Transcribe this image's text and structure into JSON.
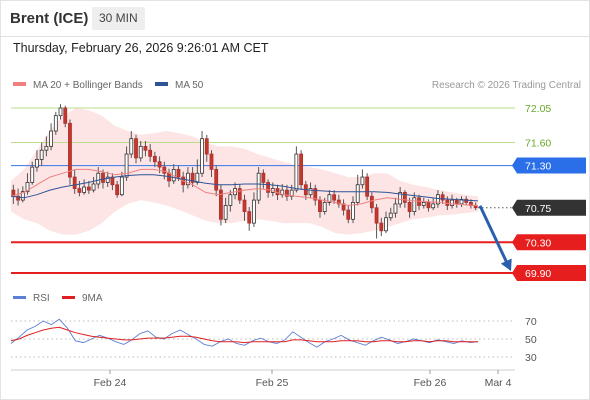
{
  "header": {
    "instrument": "Brent (ICE)",
    "timeframe": "30 MIN"
  },
  "datetime": "Thursday, February 26, 2026 9:26:01 AM CET",
  "legend": {
    "ma20_label": "MA 20 + Bollinger Bands",
    "ma50_label": "MA 50",
    "ma20_color": "#f08080",
    "ma50_color": "#2f5496"
  },
  "credit": "Research © 2026 Trading Central",
  "rsi_legend": {
    "rsi_label": "RSI",
    "ma9_label": "9MA",
    "rsi_color": "#5b7fd6",
    "ma9_color": "#e02020"
  },
  "chart_data": [
    {
      "type": "candlestick",
      "x_labels": [
        "Feb 24",
        "Feb 25",
        "Feb 26",
        "Mar 4"
      ],
      "ylim": [
        69.72,
        72.15
      ],
      "levels": [
        {
          "value": 72.05,
          "label": "72.05",
          "style": "resistance-thin",
          "color": "#8dc63f"
        },
        {
          "value": 71.6,
          "label": "71.60",
          "style": "resistance-thin",
          "color": "#8dc63f"
        },
        {
          "value": 71.3,
          "label": "71.30",
          "style": "resistance-main",
          "color": "#2a6ee8"
        },
        {
          "value": 70.75,
          "label": "70.75",
          "style": "last-price",
          "color": "#333333"
        },
        {
          "value": 70.3,
          "label": "70.30",
          "style": "support-main",
          "color": "#e61e1e"
        },
        {
          "value": 69.9,
          "label": "69.90",
          "style": "support-main",
          "color": "#e61e1e"
        }
      ],
      "last_price": 70.75,
      "projection": {
        "from": 70.75,
        "to": 69.9
      },
      "candles": [
        [
          70.98,
          70.9,
          71.05,
          70.8
        ],
        [
          70.9,
          70.85,
          71.0,
          70.78
        ],
        [
          70.85,
          70.96,
          71.03,
          70.82
        ],
        [
          70.96,
          71.08,
          71.2,
          70.92
        ],
        [
          71.08,
          71.28,
          71.35,
          71.05
        ],
        [
          71.28,
          71.38,
          71.5,
          71.22
        ],
        [
          71.38,
          71.5,
          71.6,
          71.3
        ],
        [
          71.5,
          71.55,
          71.68,
          71.42
        ],
        [
          71.55,
          71.75,
          71.85,
          71.5
        ],
        [
          71.75,
          71.95,
          72.0,
          71.7
        ],
        [
          71.95,
          72.05,
          72.1,
          71.9
        ],
        [
          72.05,
          71.85,
          72.08,
          71.8
        ],
        [
          71.85,
          71.15,
          71.9,
          71.05
        ],
        [
          71.15,
          71.0,
          71.25,
          70.93
        ],
        [
          71.0,
          70.95,
          71.1,
          70.9
        ],
        [
          70.95,
          71.02,
          71.12,
          70.92
        ],
        [
          71.02,
          70.98,
          71.1,
          70.93
        ],
        [
          70.98,
          71.06,
          71.15,
          70.95
        ],
        [
          71.06,
          71.2,
          71.28,
          71.0
        ],
        [
          71.2,
          71.08,
          71.25,
          71.0
        ],
        [
          71.08,
          71.15,
          71.22,
          71.02
        ],
        [
          71.15,
          71.05,
          71.2,
          70.98
        ],
        [
          71.05,
          70.92,
          71.1,
          70.88
        ],
        [
          70.92,
          71.15,
          71.22,
          70.9
        ],
        [
          71.15,
          71.45,
          71.55,
          71.1
        ],
        [
          71.45,
          71.65,
          71.75,
          71.4
        ],
        [
          71.65,
          71.4,
          71.7,
          71.33
        ],
        [
          71.4,
          71.55,
          71.62,
          71.35
        ],
        [
          71.55,
          71.5,
          71.62,
          71.42
        ],
        [
          71.5,
          71.42,
          71.58,
          71.35
        ],
        [
          71.42,
          71.35,
          71.48,
          71.28
        ],
        [
          71.35,
          71.28,
          71.42,
          71.2
        ],
        [
          71.28,
          71.2,
          71.35,
          71.12
        ],
        [
          71.2,
          71.1,
          71.26,
          71.02
        ],
        [
          71.1,
          71.25,
          71.32,
          71.06
        ],
        [
          71.25,
          71.15,
          71.3,
          71.1
        ],
        [
          71.15,
          71.05,
          71.22,
          70.95
        ],
        [
          71.05,
          71.2,
          71.28,
          71.0
        ],
        [
          71.2,
          71.08,
          71.28,
          71.02
        ],
        [
          71.08,
          71.2,
          71.38,
          71.05
        ],
        [
          71.2,
          71.65,
          71.75,
          71.15
        ],
        [
          71.65,
          71.45,
          71.7,
          71.35
        ],
        [
          71.45,
          71.25,
          71.5,
          71.15
        ],
        [
          71.25,
          70.98,
          71.3,
          70.9
        ],
        [
          70.98,
          70.6,
          71.05,
          70.52
        ],
        [
          70.6,
          70.78,
          70.88,
          70.55
        ],
        [
          70.78,
          70.92,
          70.98,
          70.7
        ],
        [
          70.92,
          71.0,
          71.08,
          70.86
        ],
        [
          71.0,
          70.85,
          71.05,
          70.8
        ],
        [
          70.85,
          70.7,
          70.92,
          70.58
        ],
        [
          70.7,
          70.55,
          70.76,
          70.45
        ],
        [
          70.55,
          70.85,
          70.95,
          70.5
        ],
        [
          70.85,
          71.2,
          71.28,
          70.8
        ],
        [
          71.2,
          71.08,
          71.25,
          71.0
        ],
        [
          71.08,
          70.95,
          71.12,
          70.88
        ],
        [
          70.95,
          71.0,
          71.08,
          70.9
        ],
        [
          71.0,
          70.92,
          71.05,
          70.85
        ],
        [
          70.92,
          70.98,
          71.06,
          70.88
        ],
        [
          70.98,
          70.9,
          71.05,
          70.84
        ],
        [
          70.9,
          70.98,
          71.05,
          70.85
        ],
        [
          70.98,
          71.45,
          71.55,
          70.95
        ],
        [
          71.45,
          71.05,
          71.5,
          70.98
        ],
        [
          71.05,
          70.92,
          71.1,
          70.85
        ],
        [
          70.92,
          71.0,
          71.08,
          70.88
        ],
        [
          71.0,
          70.85,
          71.05,
          70.78
        ],
        [
          70.85,
          70.7,
          70.9,
          70.62
        ],
        [
          70.7,
          70.82,
          70.88,
          70.66
        ],
        [
          70.82,
          70.92,
          70.98,
          70.78
        ],
        [
          70.92,
          70.85,
          70.98,
          70.8
        ],
        [
          70.85,
          70.8,
          70.92,
          70.75
        ],
        [
          70.8,
          70.72,
          70.86,
          70.65
        ],
        [
          70.72,
          70.6,
          70.78,
          70.55
        ],
        [
          70.6,
          70.82,
          70.9,
          70.55
        ],
        [
          70.82,
          71.05,
          71.18,
          70.78
        ],
        [
          71.05,
          71.15,
          71.25,
          71.0
        ],
        [
          71.15,
          70.9,
          71.2,
          70.85
        ],
        [
          70.9,
          70.75,
          70.95,
          70.68
        ],
        [
          70.75,
          70.55,
          70.8,
          70.35
        ],
        [
          70.55,
          70.45,
          70.62,
          70.38
        ],
        [
          70.45,
          70.62,
          70.7,
          70.42
        ],
        [
          70.62,
          70.68,
          70.75,
          70.58
        ],
        [
          70.68,
          70.8,
          70.88,
          70.62
        ],
        [
          70.8,
          70.95,
          71.02,
          70.75
        ],
        [
          70.95,
          70.82,
          70.98,
          70.75
        ],
        [
          70.82,
          70.7,
          70.88,
          70.62
        ],
        [
          70.7,
          70.88,
          70.95,
          70.65
        ],
        [
          70.88,
          70.78,
          70.92,
          70.72
        ],
        [
          70.78,
          70.82,
          70.88,
          70.74
        ],
        [
          70.82,
          70.75,
          70.86,
          70.7
        ],
        [
          70.75,
          70.8,
          70.88,
          70.72
        ],
        [
          70.8,
          70.92,
          70.98,
          70.75
        ],
        [
          70.92,
          70.85,
          70.96,
          70.8
        ],
        [
          70.85,
          70.78,
          70.9,
          70.72
        ],
        [
          70.78,
          70.85,
          70.92,
          70.74
        ],
        [
          70.85,
          70.8,
          70.88,
          70.75
        ],
        [
          70.8,
          70.86,
          70.9,
          70.76
        ],
        [
          70.86,
          70.82,
          70.9,
          70.78
        ],
        [
          70.82,
          70.78,
          70.86,
          70.74
        ],
        [
          70.78,
          70.75,
          70.82,
          70.72
        ]
      ],
      "bollinger": {
        "upper": [
          71.1,
          71.25,
          71.5,
          71.75,
          71.95,
          72.05,
          72.02,
          71.95,
          71.82,
          71.75,
          71.7,
          71.72,
          71.75,
          71.72,
          71.68,
          71.6,
          71.55,
          71.55,
          71.52,
          71.45,
          71.4,
          71.35,
          71.3,
          71.28,
          71.25,
          71.2,
          71.15,
          71.15,
          71.2,
          71.2,
          71.1,
          71.05,
          71.02,
          70.98,
          70.95,
          70.92,
          70.9
        ],
        "lower": [
          70.7,
          70.6,
          70.55,
          70.45,
          70.4,
          70.4,
          70.45,
          70.55,
          70.7,
          70.8,
          70.85,
          70.82,
          70.78,
          70.72,
          70.65,
          70.58,
          70.55,
          70.55,
          70.58,
          70.6,
          70.58,
          70.55,
          70.55,
          70.55,
          70.5,
          70.42,
          70.4,
          70.42,
          70.45,
          70.5,
          70.55,
          70.6,
          70.62,
          70.65,
          70.66,
          70.68,
          70.7
        ],
        "middle": [
          70.9,
          70.95,
          71.05,
          71.15,
          71.2,
          71.25,
          71.25,
          71.22,
          71.18,
          71.2,
          71.25,
          71.25,
          71.22,
          71.12,
          71.05,
          70.95,
          70.92,
          70.95,
          70.98,
          71.0,
          70.98,
          70.92,
          70.9,
          70.88,
          70.85,
          70.82,
          70.78,
          70.8,
          70.85,
          70.88,
          70.86,
          70.84,
          70.83,
          70.82,
          70.8,
          70.79,
          70.78
        ]
      },
      "ma50": [
        70.9,
        70.88,
        70.92,
        70.98,
        71.02,
        71.05,
        71.08,
        71.12,
        71.15,
        71.17,
        71.18,
        71.18,
        71.16,
        71.13,
        71.1,
        71.07,
        71.05,
        71.05,
        71.06,
        71.06,
        71.05,
        71.03,
        71.0,
        70.98,
        70.97,
        70.96,
        70.96,
        70.96,
        70.96,
        70.95,
        70.93,
        70.91,
        70.89,
        70.87,
        70.86,
        70.85,
        70.84
      ]
    },
    {
      "type": "line",
      "title": "RSI",
      "yticks": [
        70,
        50,
        30
      ],
      "ylim": [
        22,
        82
      ],
      "series": [
        {
          "name": "RSI",
          "values": [
            45,
            52,
            60,
            64,
            70,
            66,
            72,
            62,
            48,
            46,
            50,
            54,
            51,
            47,
            44,
            49,
            56,
            59,
            52,
            50,
            56,
            60,
            55,
            50,
            44,
            42,
            47,
            50,
            45,
            43,
            48,
            51,
            47,
            45,
            49,
            58,
            52,
            46,
            41,
            47,
            50,
            54,
            49,
            46,
            43,
            48,
            52,
            49,
            45,
            47,
            50,
            48,
            46,
            49,
            47,
            45,
            48,
            46,
            47
          ]
        },
        {
          "name": "9MA",
          "values": [
            48,
            50,
            54,
            57,
            60,
            62,
            63,
            60,
            57,
            55,
            53,
            52,
            51,
            50,
            49,
            49,
            50,
            51,
            51,
            51,
            52,
            53,
            53,
            52,
            50,
            48,
            47,
            47,
            47,
            46,
            47,
            47,
            47,
            47,
            47,
            49,
            49,
            48,
            47,
            47,
            47,
            48,
            48,
            48,
            47,
            47,
            48,
            48,
            47,
            47,
            48,
            48,
            47,
            48,
            48,
            47,
            47,
            47,
            47
          ]
        }
      ]
    }
  ]
}
